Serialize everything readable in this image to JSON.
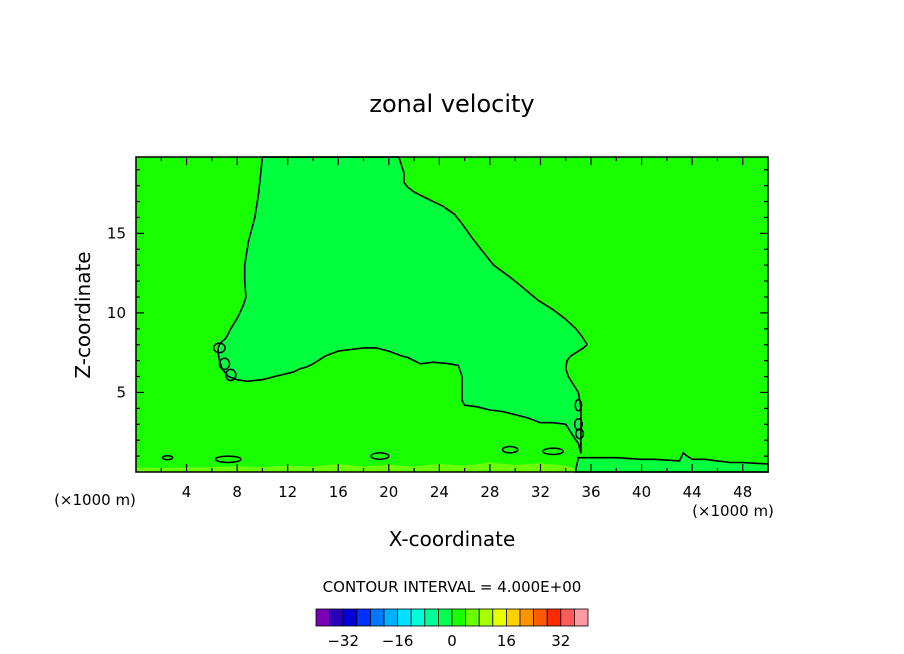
{
  "chart_data": {
    "type": "heatmap",
    "title": "zonal velocity",
    "xlabel": "X-coordinate",
    "ylabel": "Z-coordinate",
    "x_unit_left": "(×1000 m)",
    "x_unit_right": "(×1000 m)",
    "xlim": [
      0,
      50
    ],
    "ylim": [
      0,
      19.8
    ],
    "x_ticks": [
      4,
      8,
      12,
      16,
      20,
      24,
      28,
      32,
      36,
      40,
      44,
      48
    ],
    "y_ticks": [
      5,
      10,
      15
    ],
    "background_color": "#1aff00",
    "inner_region_color": "#00ff3c",
    "contour_color": "#000000",
    "footnote": "CONTOUR INTERVAL = 4.000E+00",
    "contour_interval": 4.0,
    "contour_zero_region": {
      "level": "0.0",
      "boundary_x_km": [
        10.0,
        9.9,
        9.7,
        9.4,
        8.9,
        8.6,
        8.6,
        8.7,
        8.5,
        8.1,
        7.8,
        7.5,
        7.3,
        7.1,
        6.8,
        6.6,
        6.5,
        6.5,
        6.6,
        6.8,
        7.3,
        8.0,
        8.8,
        10.0,
        11.0,
        12.0,
        12.5,
        13.0,
        13.5,
        14.0,
        15.0,
        16.0,
        17.0,
        18.0,
        19.0,
        20.0,
        21.0,
        21.5,
        22.0,
        22.5,
        23.5,
        24.8,
        25.5,
        25.8,
        25.8,
        26.0,
        27.0,
        28.0,
        29.0,
        30.0,
        31.0,
        32.0,
        33.0,
        34.0,
        34.8,
        35.0,
        35.2,
        35.2,
        35.0,
        34.6,
        34.2,
        34.0,
        34.1,
        34.4,
        34.8,
        35.4,
        35.7,
        35.3,
        34.8,
        34.0,
        33.0,
        31.8,
        30.6,
        29.5,
        28.3,
        27.5,
        26.6,
        25.8,
        25.2,
        24.3,
        23.0,
        22.0,
        21.5,
        21.2,
        21.2,
        21.0,
        20.8
      ],
      "boundary_z_km": [
        19.8,
        19.0,
        17.5,
        16.0,
        14.5,
        13.0,
        12.0,
        11.0,
        10.5,
        9.8,
        9.4,
        9.0,
        8.7,
        8.4,
        8.2,
        8.0,
        7.8,
        7.5,
        7.0,
        6.5,
        6.0,
        5.8,
        5.7,
        5.8,
        6.0,
        6.2,
        6.3,
        6.5,
        6.6,
        6.8,
        7.3,
        7.6,
        7.7,
        7.8,
        7.8,
        7.6,
        7.3,
        7.2,
        7.0,
        6.8,
        6.9,
        6.8,
        6.7,
        6.0,
        4.5,
        4.2,
        4.1,
        3.9,
        3.8,
        3.6,
        3.4,
        3.1,
        3.1,
        3.0,
        2.0,
        1.8,
        1.2,
        4.0,
        5.0,
        5.5,
        6.0,
        6.5,
        7.0,
        7.3,
        7.5,
        7.8,
        8.0,
        8.5,
        9.0,
        9.6,
        10.2,
        10.8,
        11.6,
        12.3,
        13.0,
        13.8,
        14.7,
        15.6,
        16.2,
        16.7,
        17.2,
        17.6,
        17.9,
        18.2,
        18.8,
        19.3,
        19.8
      ]
    },
    "contour_zero_bottom": {
      "x_km": [
        34.8,
        35.0,
        36.0,
        38.0,
        40.0,
        41.0,
        42.0,
        43.0,
        43.3,
        43.6,
        44.0,
        45.0,
        46.0,
        47.0,
        48.0,
        49.0,
        50.0
      ],
      "z_km": [
        0.2,
        0.9,
        0.9,
        0.9,
        0.8,
        0.8,
        0.75,
        0.7,
        1.2,
        1.0,
        0.8,
        0.8,
        0.7,
        0.6,
        0.6,
        0.55,
        0.5
      ]
    },
    "small_contours": [
      {
        "cx": 6.6,
        "cz": 7.8,
        "rx": 0.45,
        "rz": 0.3
      },
      {
        "cx": 7.0,
        "cz": 6.8,
        "rx": 0.4,
        "rz": 0.35
      },
      {
        "cx": 7.5,
        "cz": 6.1,
        "rx": 0.4,
        "rz": 0.35
      },
      {
        "cx": 35.0,
        "cz": 4.2,
        "rx": 0.25,
        "rz": 0.35
      },
      {
        "cx": 35.0,
        "cz": 3.0,
        "rx": 0.3,
        "rz": 0.35
      },
      {
        "cx": 35.1,
        "cz": 2.4,
        "rx": 0.3,
        "rz": 0.3
      },
      {
        "cx": 2.5,
        "cz": 0.9,
        "rx": 0.4,
        "rz": 0.12
      },
      {
        "cx": 7.3,
        "cz": 0.8,
        "rx": 1.0,
        "rz": 0.2
      },
      {
        "cx": 19.3,
        "cz": 1.0,
        "rx": 0.7,
        "rz": 0.2
      },
      {
        "cx": 29.6,
        "cz": 1.4,
        "rx": 0.6,
        "rz": 0.2
      },
      {
        "cx": 33.0,
        "cz": 1.3,
        "rx": 0.8,
        "rz": 0.2
      }
    ],
    "surface_layer": {
      "color": "#6aff00",
      "x_km": [
        0,
        2,
        5,
        8,
        10,
        12,
        14,
        16,
        18,
        20,
        22,
        24,
        26,
        28,
        30,
        32,
        34,
        34.8
      ],
      "z_km": [
        0.3,
        0.25,
        0.3,
        0.35,
        0.3,
        0.4,
        0.35,
        0.5,
        0.35,
        0.45,
        0.35,
        0.5,
        0.4,
        0.6,
        0.45,
        0.55,
        0.4,
        0.2
      ]
    },
    "colorbar": {
      "colors": [
        "#7a00b3",
        "#2a00b8",
        "#0000d8",
        "#0030ff",
        "#0078ff",
        "#00b0ff",
        "#00e0ff",
        "#00ffd8",
        "#00ff96",
        "#00ff4e",
        "#1aff00",
        "#6aff00",
        "#a8ff00",
        "#e8ff00",
        "#ffd000",
        "#ff9400",
        "#ff5a00",
        "#ff2a00",
        "#ff5a5a",
        "#ff9aa0"
      ],
      "tick_labels": [
        "−32",
        "−16",
        "0",
        "16",
        "32"
      ],
      "tick_values": [
        -32,
        -16,
        0,
        16,
        32
      ],
      "range": [
        -40,
        40
      ]
    }
  }
}
